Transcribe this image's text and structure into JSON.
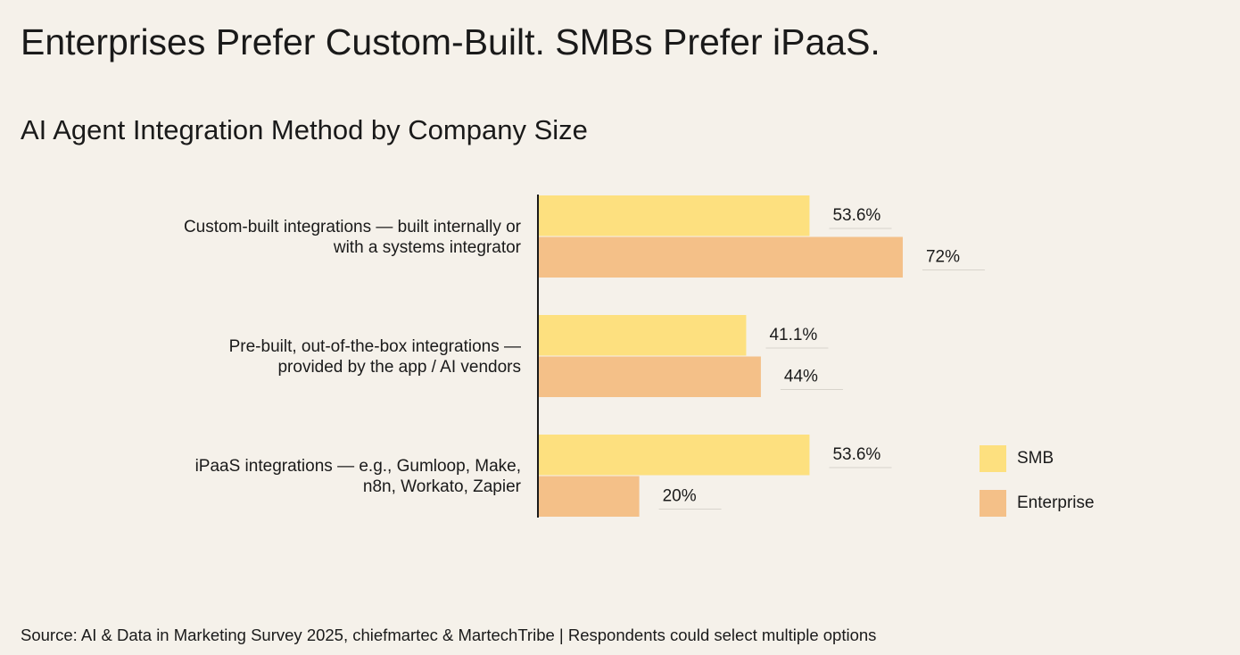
{
  "chart_data": {
    "type": "bar",
    "orientation": "horizontal",
    "title": "Enterprises Prefer Custom-Built. SMBs Prefer iPaaS.",
    "subtitle": "AI Agent Integration Method by Company Size",
    "source": "Source: AI & Data in Marketing Survey 2025, chiefmartec & MartechTribe | Respondents could select multiple options",
    "categories": [
      "Custom-built integrations — built internally or\nwith a systems integrator",
      "Pre-built, out-of-the-box integrations —\nprovided by the app / AI vendors",
      "iPaaS integrations — e.g., Gumloop, Make,\nn8n, Workato, Zapier"
    ],
    "xlim": [
      0,
      100
    ],
    "legend": "right",
    "series": [
      {
        "name": "SMB",
        "color": "#fde07f",
        "values": [
          53.6,
          41.1,
          53.6
        ],
        "value_labels": [
          "53.6%",
          "41.1%",
          "53.6%"
        ]
      },
      {
        "name": "Enterprise",
        "color": "#f4c088",
        "values": [
          72,
          44,
          20
        ],
        "value_labels": [
          "72%",
          "44%",
          "20%"
        ]
      }
    ]
  }
}
